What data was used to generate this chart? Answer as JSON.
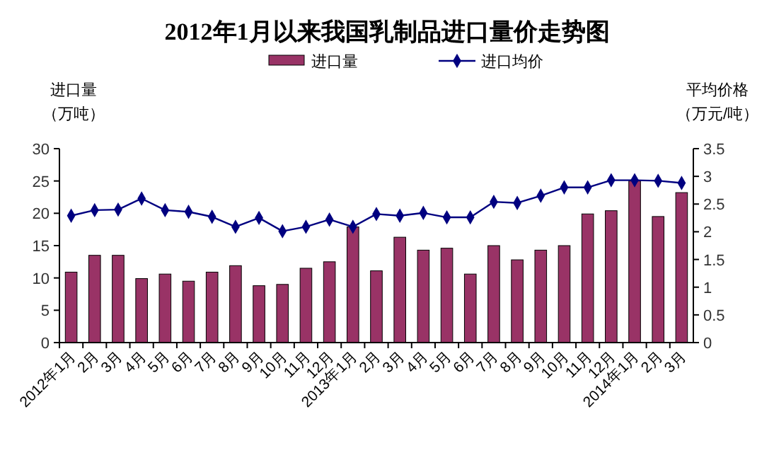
{
  "chart_data": {
    "type": "bar",
    "title": "2012年1月以来我国乳制品进口量价走势图",
    "ylabel": "进口量（万吨）",
    "y2label": "平均价格（万元/吨）",
    "categories": [
      "2012年1月",
      "2月",
      "3月",
      "4月",
      "5月",
      "6月",
      "7月",
      "8月",
      "9月",
      "10月",
      "11月",
      "12月",
      "2013年1月",
      "2月",
      "3月",
      "4月",
      "5月",
      "6月",
      "7月",
      "8月",
      "9月",
      "10月",
      "11月",
      "12月",
      "2014年1月",
      "2月",
      "3月"
    ],
    "series": [
      {
        "name": "进口量",
        "color": "#993366",
        "values": [
          10.9,
          13.5,
          13.5,
          9.9,
          10.6,
          9.5,
          10.9,
          11.9,
          8.8,
          9.0,
          11.5,
          12.5,
          17.9,
          11.1,
          16.3,
          14.3,
          14.6,
          10.6,
          15.0,
          12.8,
          14.3,
          15.0,
          19.9,
          20.4,
          25.0,
          19.5,
          23.2
        ]
      },
      {
        "name": "进口均价",
        "type": "line",
        "axis": "y2",
        "color": "#000080",
        "marker": "diamond",
        "values": [
          2.29,
          2.39,
          2.4,
          2.6,
          2.39,
          2.36,
          2.27,
          2.09,
          2.25,
          2.01,
          2.09,
          2.22,
          2.09,
          2.32,
          2.29,
          2.34,
          2.26,
          2.26,
          2.54,
          2.52,
          2.65,
          2.8,
          2.8,
          2.93,
          2.93,
          2.92,
          2.88
        ]
      }
    ],
    "ylim": [
      0,
      30
    ],
    "yticks": [
      0,
      5,
      10,
      15,
      20,
      25,
      30
    ],
    "y2lim": [
      0,
      3.5
    ],
    "y2ticks": [
      0,
      0.5,
      1,
      1.5,
      2,
      2.5,
      3,
      3.5
    ],
    "legend": "top",
    "grid": false
  }
}
